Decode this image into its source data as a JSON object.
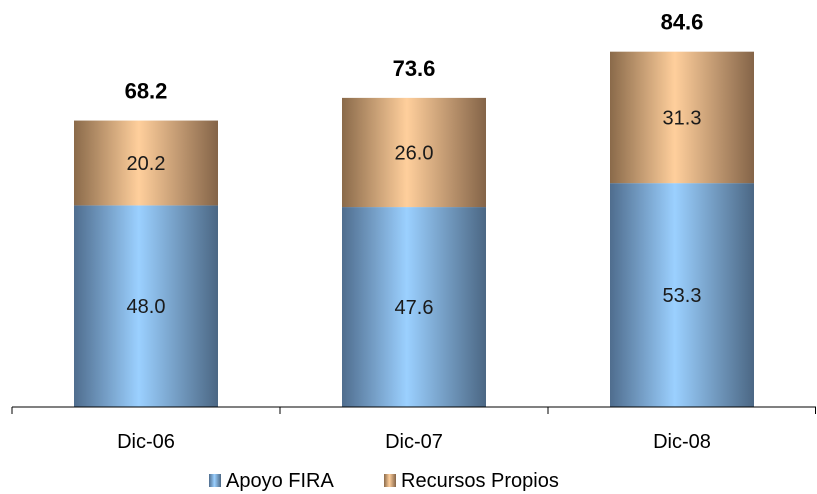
{
  "chart_data": {
    "type": "bar",
    "stacked": true,
    "categories": [
      "Dic-06",
      "Dic-07",
      "Dic-08"
    ],
    "series": [
      {
        "name": "Apoyo FIRA",
        "values": [
          48.0,
          47.6,
          53.3
        ],
        "color": "#8cc4f4"
      },
      {
        "name": "Recursos Propios",
        "values": [
          20.2,
          26.0,
          31.3
        ],
        "color": "#f2c998"
      }
    ],
    "totals": [
      "68.2",
      "73.6",
      "84.6"
    ],
    "segment_labels": [
      [
        "48.0",
        "47.6",
        "53.3"
      ],
      [
        "20.2",
        "26.0",
        "31.3"
      ]
    ],
    "ylim": [
      0,
      85
    ],
    "grid": false,
    "legend": "bottom-center",
    "title": "",
    "xlabel": "",
    "ylabel": ""
  }
}
